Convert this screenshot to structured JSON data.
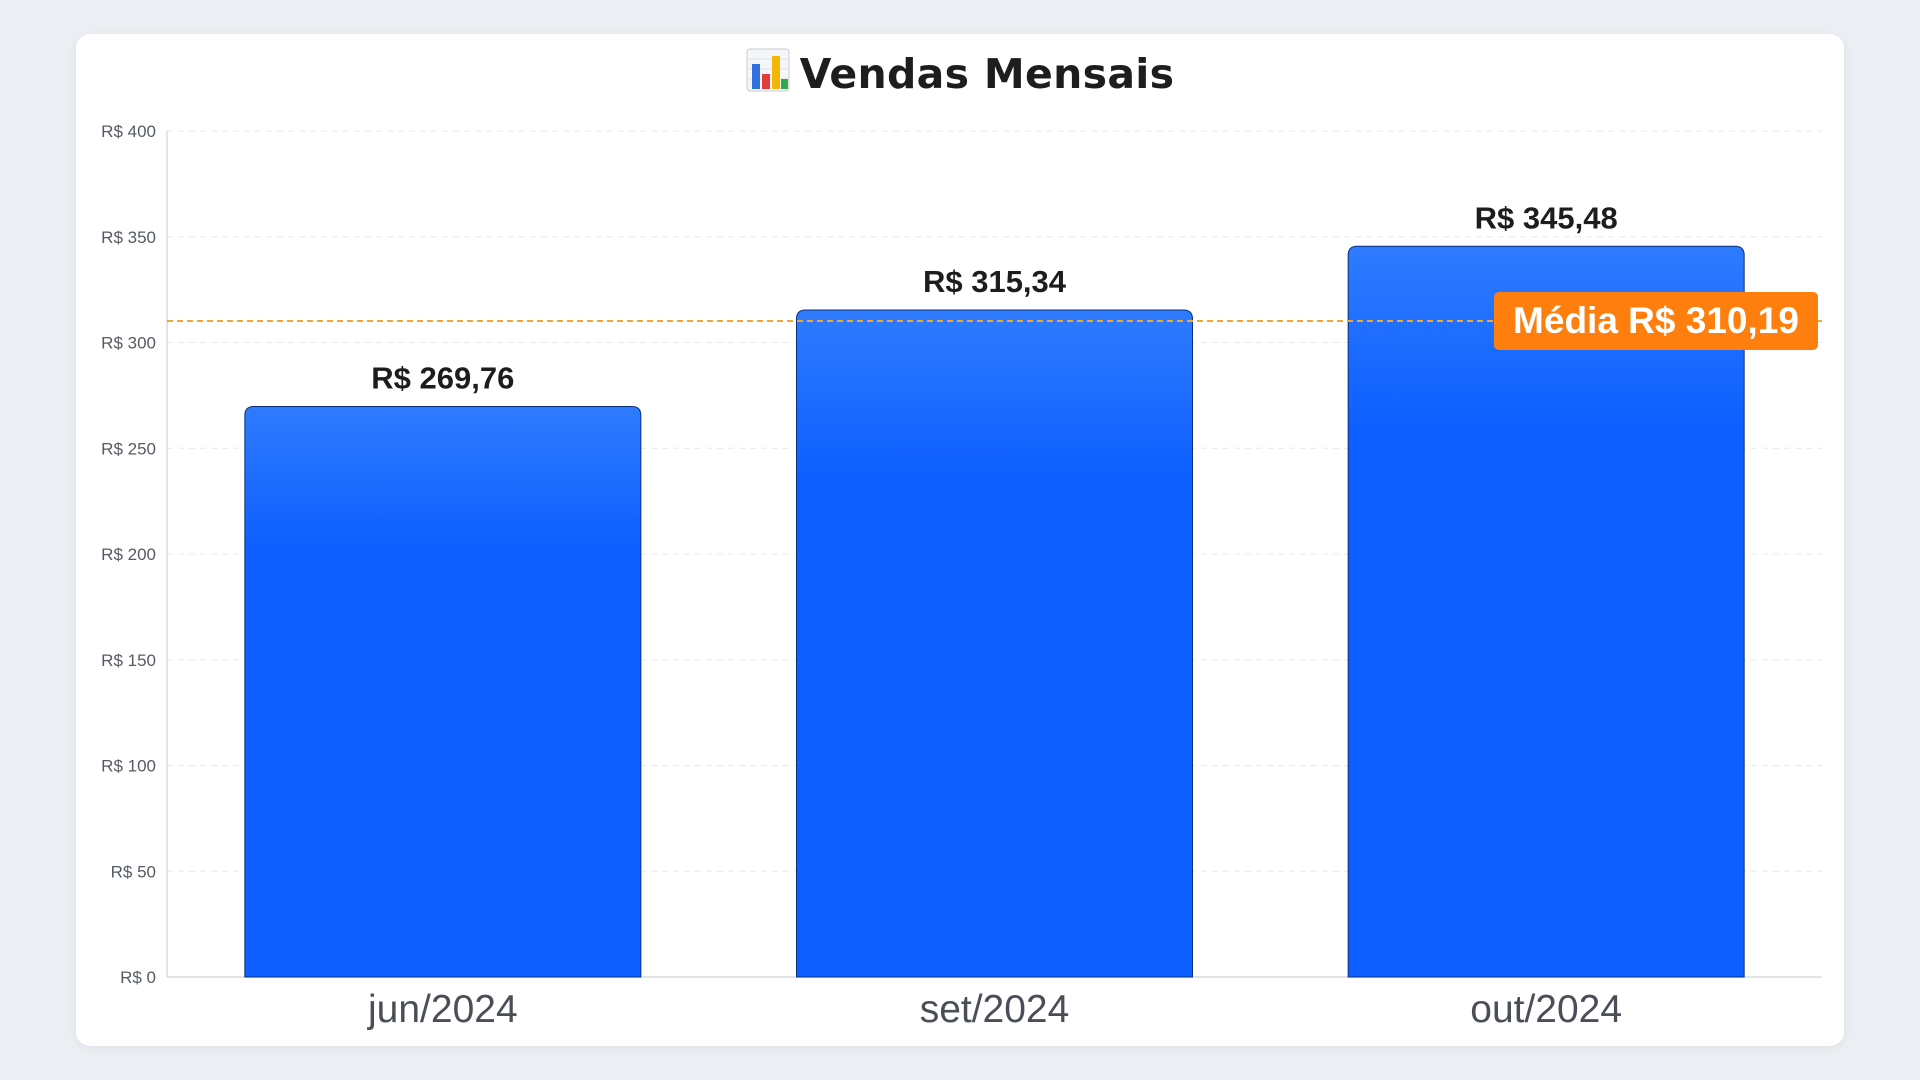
{
  "chart_data": {
    "type": "bar",
    "title": "Vendas Mensais",
    "title_icon": "bar-chart-icon",
    "categories": [
      "jun/2024",
      "set/2024",
      "out/2024"
    ],
    "values": [
      269.76,
      315.34,
      345.48
    ],
    "value_labels": [
      "R$ 269,76",
      "R$ 315,34",
      "R$ 345,48"
    ],
    "yticks": [
      0,
      50,
      100,
      150,
      200,
      250,
      300,
      350,
      400
    ],
    "ytick_labels": [
      "R$ 0",
      "R$ 50",
      "R$ 100",
      "R$ 150",
      "R$ 200",
      "R$ 250",
      "R$ 300",
      "R$ 350",
      "R$ 400"
    ],
    "ylim": [
      0,
      400
    ],
    "xlabel": "",
    "ylabel": "",
    "grid": true,
    "reference_line": {
      "value": 310.19,
      "label": "Média R$ 310,19"
    },
    "colors": {
      "bar_top": "#2f7bff",
      "bar_bottom": "#0d5fff",
      "bar_border": "#0b2f7a",
      "average_line": "#f0a830",
      "average_label_bg": "#ff7f0e",
      "average_label_text": "#ffffff"
    }
  }
}
